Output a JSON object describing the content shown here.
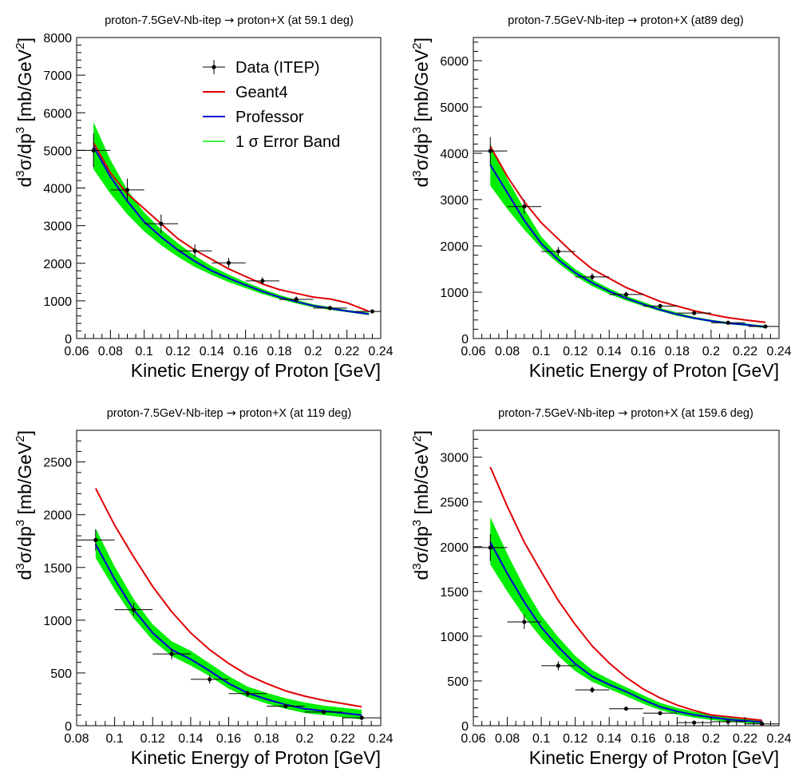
{
  "chart_data": [
    {
      "type": "line",
      "title_left": "proton-7.5GeV-Nb-itep",
      "title_arrow": "→",
      "title_right": "proton+X (at 59.1 deg)",
      "xlabel": "Kinetic Energy of Proton [GeV]",
      "ylabel": "d3σ/dp3 [mb/GeV2]",
      "xlim": [
        0.06,
        0.24
      ],
      "ylim": [
        0,
        8000
      ],
      "xticks": [
        "0.06",
        "0.08",
        "0.1",
        "0.12",
        "0.14",
        "0.16",
        "0.18",
        "0.2",
        "0.22",
        "0.24"
      ],
      "yticks": [
        "0",
        "1000",
        "2000",
        "3000",
        "4000",
        "5000",
        "6000",
        "7000",
        "8000"
      ],
      "legend": {
        "placement": "top-right",
        "entries": [
          "Data (ITEP)",
          "Geant4",
          "Professor",
          "1 σ Error Band"
        ]
      },
      "data": {
        "x": [
          0.07,
          0.09,
          0.11,
          0.13,
          0.15,
          0.17,
          0.19,
          0.21,
          0.235
        ],
        "y": [
          5000,
          3950,
          3050,
          2330,
          2010,
          1530,
          1040,
          810,
          720
        ],
        "yerr": [
          450,
          300,
          250,
          170,
          130,
          100,
          80,
          60,
          50
        ]
      },
      "geant4": {
        "x": [
          0.07,
          0.08,
          0.09,
          0.1,
          0.11,
          0.12,
          0.13,
          0.14,
          0.15,
          0.16,
          0.17,
          0.18,
          0.19,
          0.2,
          0.21,
          0.22,
          0.233
        ],
        "y": [
          5200,
          4400,
          3850,
          3450,
          3050,
          2650,
          2350,
          2100,
          1850,
          1650,
          1450,
          1300,
          1200,
          1100,
          1050,
          950,
          720
        ]
      },
      "professor": {
        "x": [
          0.07,
          0.08,
          0.09,
          0.1,
          0.11,
          0.12,
          0.13,
          0.14,
          0.15,
          0.16,
          0.17,
          0.18,
          0.19,
          0.2,
          0.21,
          0.22,
          0.233
        ],
        "y": [
          5100,
          4300,
          3650,
          3100,
          2700,
          2350,
          2050,
          1800,
          1600,
          1420,
          1250,
          1100,
          980,
          870,
          800,
          730,
          650
        ]
      },
      "band": {
        "lower": [
          4500,
          3850,
          3300,
          2850,
          2480,
          2170,
          1900,
          1690,
          1500,
          1340,
          1180,
          1050,
          930,
          830,
          760,
          700,
          620
        ],
        "upper": [
          5750,
          4750,
          3950,
          3350,
          2900,
          2530,
          2200,
          1920,
          1700,
          1500,
          1320,
          1160,
          1030,
          910,
          840,
          760,
          690
        ]
      }
    },
    {
      "type": "line",
      "title_left": "proton-7.5GeV-Nb-itep",
      "title_arrow": "→",
      "title_right": "proton+X (at89 deg)",
      "xlabel": "Kinetic Energy of Proton [GeV]",
      "ylabel": "d3σ/dp3 [mb/GeV2]",
      "xlim": [
        0.06,
        0.24
      ],
      "ylim": [
        0,
        6500
      ],
      "xticks": [
        "0.06",
        "0.08",
        "0.1",
        "0.12",
        "0.14",
        "0.16",
        "0.18",
        "0.2",
        "0.22",
        "0.24"
      ],
      "yticks": [
        "0",
        "1000",
        "2000",
        "3000",
        "4000",
        "5000",
        "6000"
      ],
      "data": {
        "x": [
          0.07,
          0.09,
          0.11,
          0.13,
          0.15,
          0.17,
          0.19,
          0.21,
          0.232
        ],
        "y": [
          4050,
          2850,
          1880,
          1330,
          950,
          700,
          550,
          340,
          260
        ],
        "yerr": [
          300,
          150,
          100,
          80,
          60,
          50,
          40,
          30,
          25
        ]
      },
      "geant4": {
        "x": [
          0.07,
          0.08,
          0.09,
          0.1,
          0.11,
          0.12,
          0.13,
          0.14,
          0.15,
          0.16,
          0.17,
          0.18,
          0.19,
          0.2,
          0.21,
          0.22,
          0.232
        ],
        "y": [
          4150,
          3500,
          2950,
          2500,
          2150,
          1800,
          1500,
          1300,
          1100,
          950,
          800,
          700,
          600,
          520,
          450,
          400,
          350
        ]
      },
      "professor": {
        "x": [
          0.07,
          0.08,
          0.09,
          0.1,
          0.11,
          0.12,
          0.13,
          0.14,
          0.15,
          0.16,
          0.17,
          0.18,
          0.19,
          0.2,
          0.21,
          0.22,
          0.232
        ],
        "y": [
          3750,
          3150,
          2550,
          2050,
          1700,
          1420,
          1200,
          1020,
          870,
          740,
          620,
          520,
          440,
          380,
          330,
          300,
          250
        ]
      },
      "band": {
        "lower": [
          3300,
          2800,
          2350,
          1950,
          1620,
          1350,
          1130,
          960,
          820,
          700,
          590,
          490,
          415,
          355,
          305,
          275,
          225
        ],
        "upper": [
          4200,
          3450,
          2800,
          2200,
          1800,
          1500,
          1270,
          1080,
          920,
          790,
          660,
          560,
          470,
          405,
          355,
          325,
          275
        ]
      }
    },
    {
      "type": "line",
      "title_left": "proton-7.5GeV-Nb-itep",
      "title_arrow": "→",
      "title_right": "proton+X (at 119 deg)",
      "xlabel": "Kinetic Energy of Proton [GeV]",
      "ylabel": "d3σ/dp3 [mb/GeV2]",
      "xlim": [
        0.08,
        0.24
      ],
      "ylim": [
        0,
        2800
      ],
      "xticks": [
        "0.08",
        "0.1",
        "0.12",
        "0.14",
        "0.16",
        "0.18",
        "0.2",
        "0.22",
        "0.24"
      ],
      "yticks": [
        "0",
        "500",
        "1000",
        "1500",
        "2000",
        "2500"
      ],
      "data": {
        "x": [
          0.09,
          0.11,
          0.13,
          0.15,
          0.17,
          0.19,
          0.21,
          0.23
        ],
        "y": [
          1760,
          1100,
          680,
          440,
          305,
          185,
          130,
          75
        ],
        "yerr": [
          100,
          60,
          50,
          40,
          30,
          20,
          20,
          20
        ]
      },
      "geant4": {
        "x": [
          0.09,
          0.1,
          0.11,
          0.12,
          0.13,
          0.14,
          0.15,
          0.16,
          0.17,
          0.18,
          0.19,
          0.2,
          0.21,
          0.22,
          0.23
        ],
        "y": [
          2250,
          1900,
          1600,
          1320,
          1080,
          880,
          720,
          590,
          480,
          400,
          330,
          280,
          240,
          210,
          180
        ]
      },
      "professor": {
        "x": [
          0.09,
          0.1,
          0.11,
          0.12,
          0.13,
          0.14,
          0.15,
          0.16,
          0.17,
          0.18,
          0.19,
          0.2,
          0.21,
          0.22,
          0.23
        ],
        "y": [
          1720,
          1390,
          1100,
          880,
          720,
          630,
          520,
          400,
          310,
          250,
          200,
          160,
          140,
          120,
          100
        ]
      },
      "band": {
        "lower": [
          1590,
          1290,
          1020,
          810,
          660,
          570,
          470,
          350,
          270,
          210,
          160,
          120,
          100,
          80,
          60
        ],
        "upper": [
          1870,
          1510,
          1200,
          960,
          800,
          710,
          590,
          470,
          370,
          310,
          260,
          220,
          190,
          170,
          150
        ]
      }
    },
    {
      "type": "line",
      "title_left": "proton-7.5GeV-Nb-itep",
      "title_arrow": "→",
      "title_right": "proton+X (at 159.6 deg)",
      "xlabel": "Kinetic Energy of Proton [GeV]",
      "ylabel": "d3σ/dp3 [mb/GeV2]",
      "xlim": [
        0.06,
        0.24
      ],
      "ylim": [
        0,
        3300
      ],
      "xticks": [
        "0.06",
        "0.08",
        "0.1",
        "0.12",
        "0.14",
        "0.16",
        "0.18",
        "0.2",
        "0.22",
        "0.24"
      ],
      "yticks": [
        "0",
        "500",
        "1000",
        "1500",
        "2000",
        "2500",
        "3000"
      ],
      "data": {
        "x": [
          0.07,
          0.09,
          0.11,
          0.13,
          0.15,
          0.17,
          0.19,
          0.21,
          0.23
        ],
        "y": [
          1990,
          1160,
          670,
          400,
          190,
          140,
          35,
          45,
          20
        ],
        "yerr": [
          150,
          80,
          50,
          35,
          20,
          15,
          10,
          10,
          10
        ]
      },
      "geant4": {
        "x": [
          0.07,
          0.08,
          0.09,
          0.1,
          0.11,
          0.12,
          0.13,
          0.14,
          0.15,
          0.16,
          0.17,
          0.18,
          0.19,
          0.2,
          0.21,
          0.22,
          0.23
        ],
        "y": [
          2890,
          2450,
          2050,
          1720,
          1400,
          1130,
          890,
          700,
          540,
          410,
          310,
          230,
          170,
          120,
          100,
          80,
          60
        ]
      },
      "professor": {
        "x": [
          0.07,
          0.08,
          0.09,
          0.1,
          0.11,
          0.12,
          0.13,
          0.14,
          0.15,
          0.16,
          0.17,
          0.18,
          0.19,
          0.2,
          0.21,
          0.22,
          0.23
        ],
        "y": [
          2050,
          1700,
          1380,
          1100,
          880,
          690,
          550,
          460,
          380,
          290,
          210,
          160,
          120,
          95,
          70,
          55,
          40
        ]
      },
      "band": {
        "lower": [
          1800,
          1500,
          1220,
          980,
          780,
          610,
          490,
          410,
          330,
          245,
          175,
          125,
          90,
          65,
          45,
          30,
          20
        ],
        "upper": [
          2330,
          1920,
          1550,
          1230,
          990,
          780,
          620,
          520,
          430,
          340,
          255,
          200,
          155,
          125,
          100,
          80,
          60
        ]
      }
    }
  ]
}
